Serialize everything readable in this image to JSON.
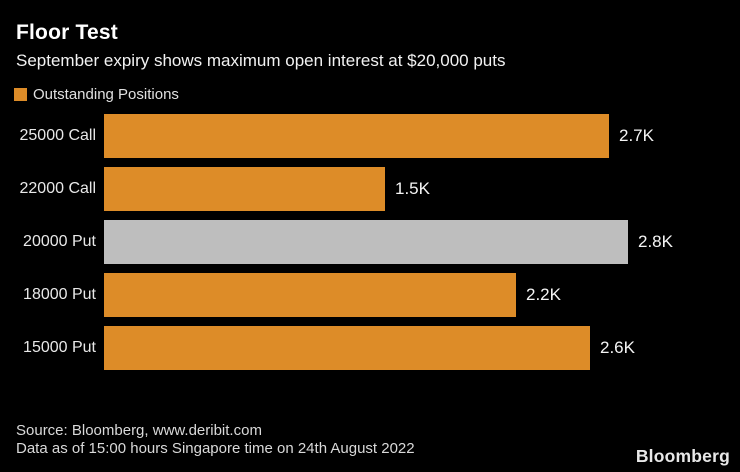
{
  "header": {
    "title": "Floor Test",
    "subtitle": "September expiry shows maximum open interest at $20,000 puts"
  },
  "legend": {
    "label": "Outstanding Positions",
    "swatch_color": "#dd8c28"
  },
  "chart_data": {
    "type": "bar",
    "orientation": "horizontal",
    "title": "Floor Test",
    "subtitle": "September expiry shows maximum open interest at $20,000 puts",
    "series_name": "Outstanding Positions",
    "categories": [
      "25000 Call",
      "22000 Call",
      "20000 Put",
      "18000 Put",
      "15000 Put"
    ],
    "values": [
      2700,
      1500,
      2800,
      2200,
      2600
    ],
    "value_labels": [
      "2.7K",
      "1.5K",
      "2.8K",
      "2.2K",
      "2.6K"
    ],
    "unit": "contracts (open interest)",
    "bar_colors": [
      "#dd8c28",
      "#dd8c28",
      "#bebebe",
      "#dd8c28",
      "#dd8c28"
    ],
    "highlight_category": "20000 Put",
    "highlight_color": "#bebebe",
    "xlim": [
      0,
      3400
    ],
    "grid": false,
    "legend_position": "top-left"
  },
  "footer": {
    "source_line": "Source: Bloomberg, www.deribit.com",
    "note_line": "Data as of 15:00 hours Singapore time on 24th August 2022",
    "brand": "Bloomberg"
  }
}
